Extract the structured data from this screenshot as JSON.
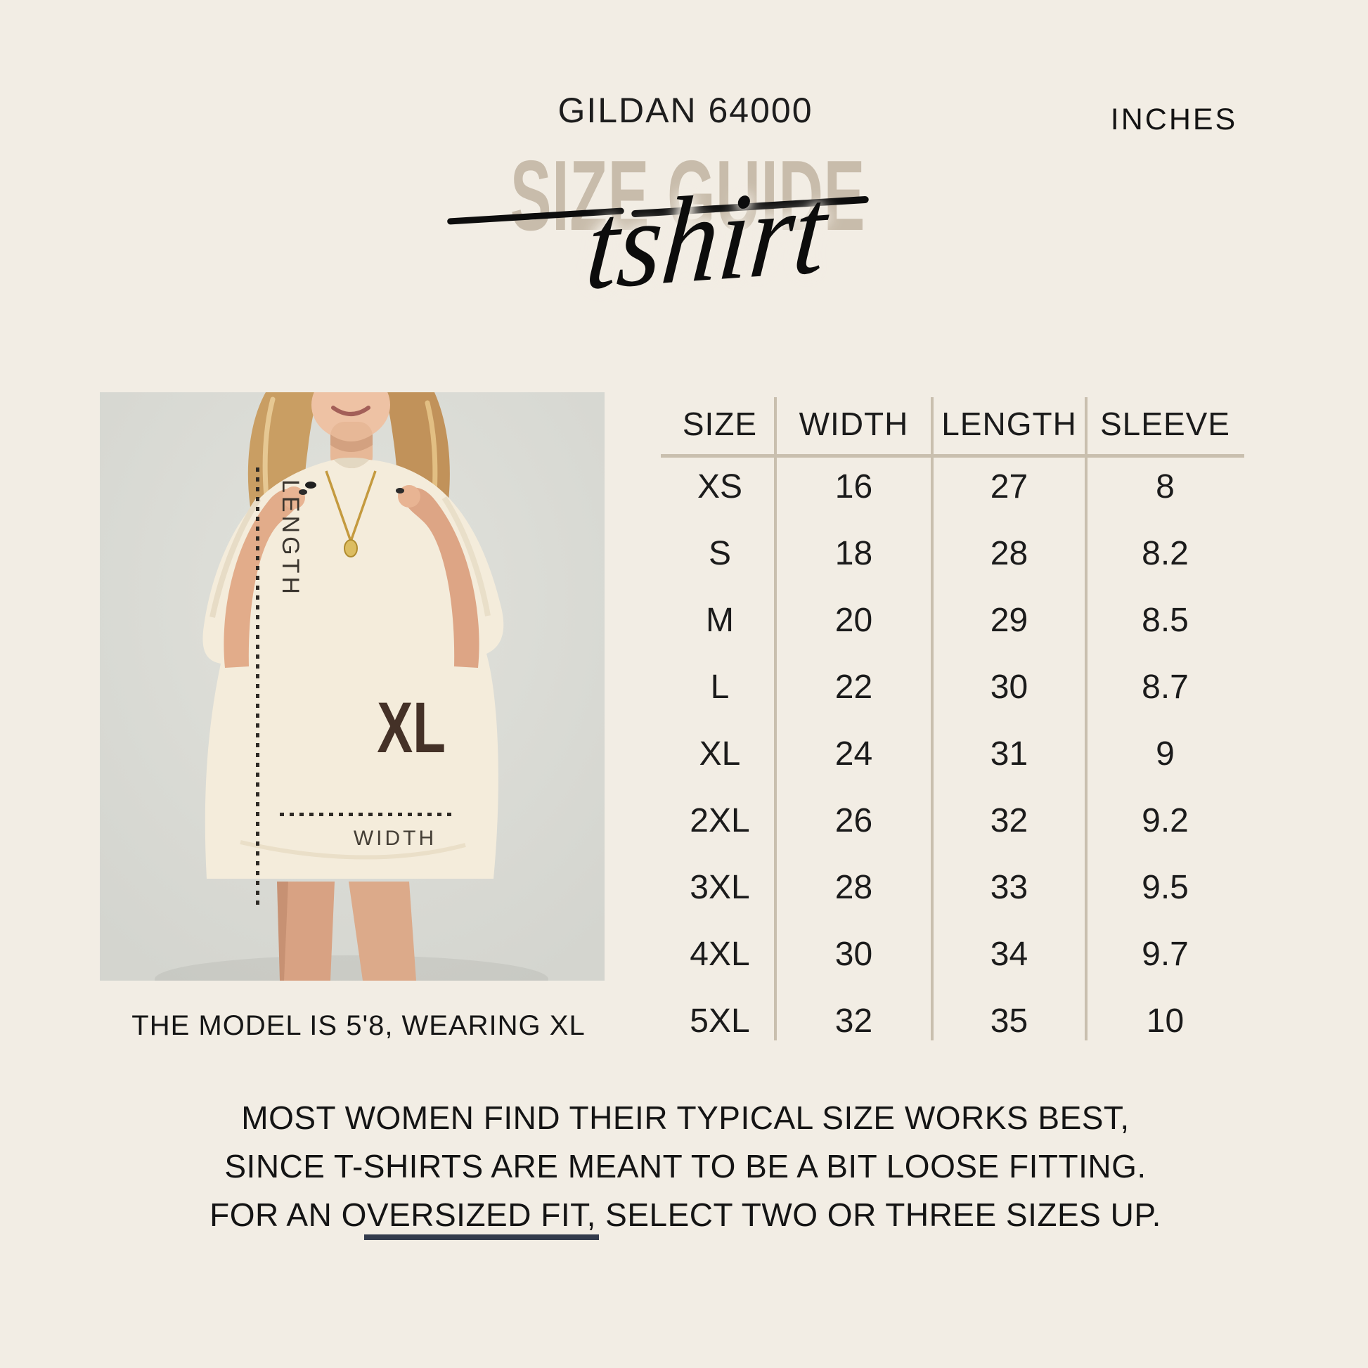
{
  "header": {
    "brand": "GILDAN 64000",
    "title": "SIZE GUIDE",
    "script_title": "tshirt",
    "unit_label": "INCHES"
  },
  "photo": {
    "caption": "THE MODEL IS 5'8, WEARING XL",
    "length_label": "LENGTH",
    "width_label": "WIDTH",
    "shirt_size_label": "XL"
  },
  "size_table": {
    "columns": [
      "SIZE",
      "WIDTH",
      "LENGTH",
      "SLEEVE"
    ],
    "rows": [
      [
        "XS",
        "16",
        "27",
        "8"
      ],
      [
        "S",
        "18",
        "28",
        "8.2"
      ],
      [
        "M",
        "20",
        "29",
        "8.5"
      ],
      [
        "L",
        "22",
        "30",
        "8.7"
      ],
      [
        "XL",
        "24",
        "31",
        "9"
      ],
      [
        "2XL",
        "26",
        "32",
        "9.2"
      ],
      [
        "3XL",
        "28",
        "33",
        "9.5"
      ],
      [
        "4XL",
        "30",
        "34",
        "9.7"
      ],
      [
        "5XL",
        "32",
        "35",
        "10"
      ]
    ]
  },
  "footer": {
    "line1": "MOST WOMEN FIND THEIR TYPICAL SIZE WORKS BEST,",
    "line2": "SINCE T-SHIRTS ARE MEANT TO BE A BIT LOOSE FITTING.",
    "line3": "FOR AN OVERSIZED FIT, SELECT TWO OR THREE SIZES UP.",
    "underlined_phrase": "OVERSIZED FIT"
  },
  "colors": {
    "background": "#f2ede4",
    "title_beige": "#c8bcab",
    "table_line": "#c9bfae",
    "text": "#1b1b1b",
    "xl_brown": "#443127",
    "underline": "#333b4c",
    "photo_background": "#d8d9d2"
  }
}
